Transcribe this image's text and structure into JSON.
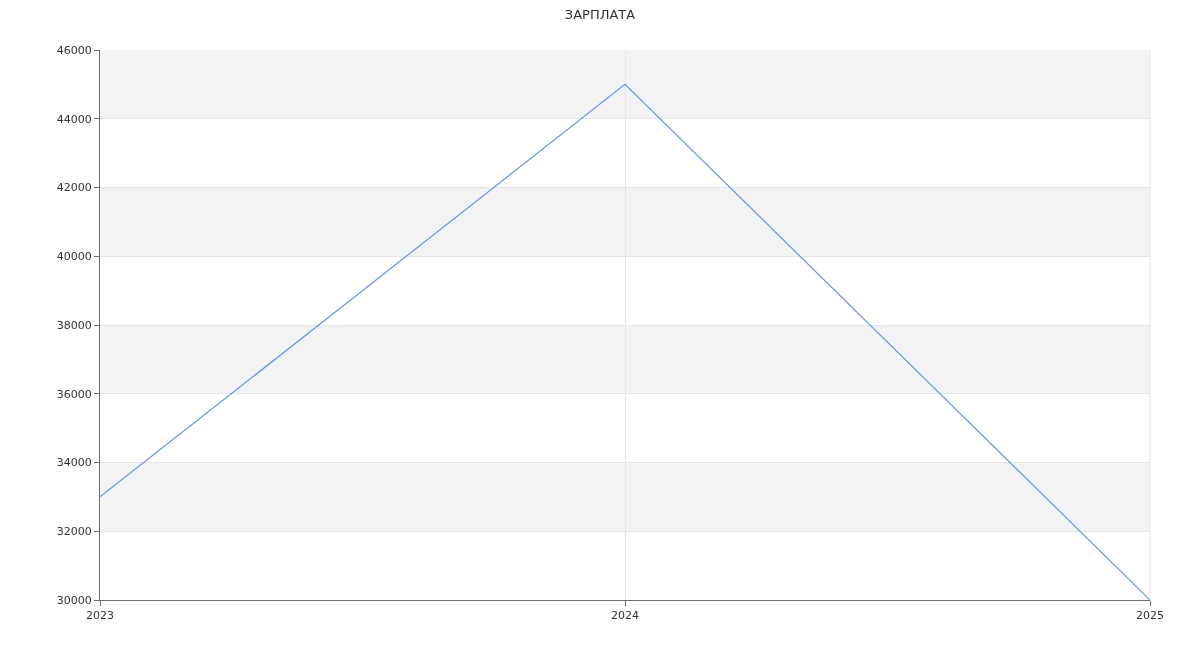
{
  "chart_data": {
    "type": "line",
    "title": "ЗАРПЛАТА",
    "x": [
      2023,
      2024,
      2025
    ],
    "series": [
      {
        "color": "#6495ed",
        "values": [
          33000,
          45000,
          30000
        ]
      }
    ],
    "xlim": [
      2023,
      2025
    ],
    "xticks": [
      2023,
      2024,
      2025
    ],
    "ylim": [
      30000,
      46000
    ],
    "yticks": [
      30000,
      32000,
      34000,
      36000,
      38000,
      40000,
      42000,
      44000,
      46000
    ],
    "grid": true,
    "marker": "none",
    "line_style": "solid"
  }
}
